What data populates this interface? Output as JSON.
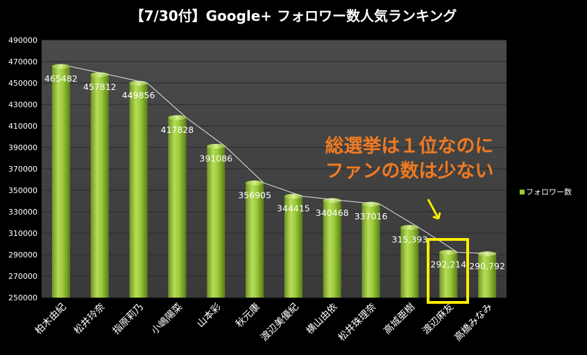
{
  "chart_data": {
    "type": "bar",
    "title": "【7/30付】Google+ フォロワー数人気ランキング",
    "categories": [
      "柏木由紀",
      "松井玲奈",
      "指原莉乃",
      "小嶋陽菜",
      "山本彩",
      "秋元康",
      "渡辺美優紀",
      "横山由依",
      "松井珠理奈",
      "高城亜樹",
      "渡辺麻友",
      "高橋みなみ"
    ],
    "series": [
      {
        "name": "フォロワー数",
        "values": [
          465482,
          457812,
          449856,
          417828,
          391086,
          356905,
          344415,
          340468,
          337016,
          315393,
          292214,
          290792
        ],
        "labels": [
          "465482",
          "457812",
          "449856",
          "417828",
          "391086",
          "356905",
          "344415",
          "340468",
          "337016",
          "315,393",
          "292,214",
          "290,792"
        ]
      }
    ],
    "ylim": [
      250000,
      490000
    ],
    "yticks": [
      250000,
      270000,
      290000,
      310000,
      330000,
      350000,
      370000,
      390000,
      410000,
      430000,
      450000,
      470000,
      490000
    ],
    "grid": true,
    "legend": "right",
    "bar_color": "#9ccb3a",
    "annotation": {
      "lines": [
        "総選挙は１位なのに",
        "ファンの数は少ない"
      ],
      "color": "#f07a22",
      "highlight_color": "#ffee00",
      "highlight_category": "渡辺麻友"
    }
  }
}
